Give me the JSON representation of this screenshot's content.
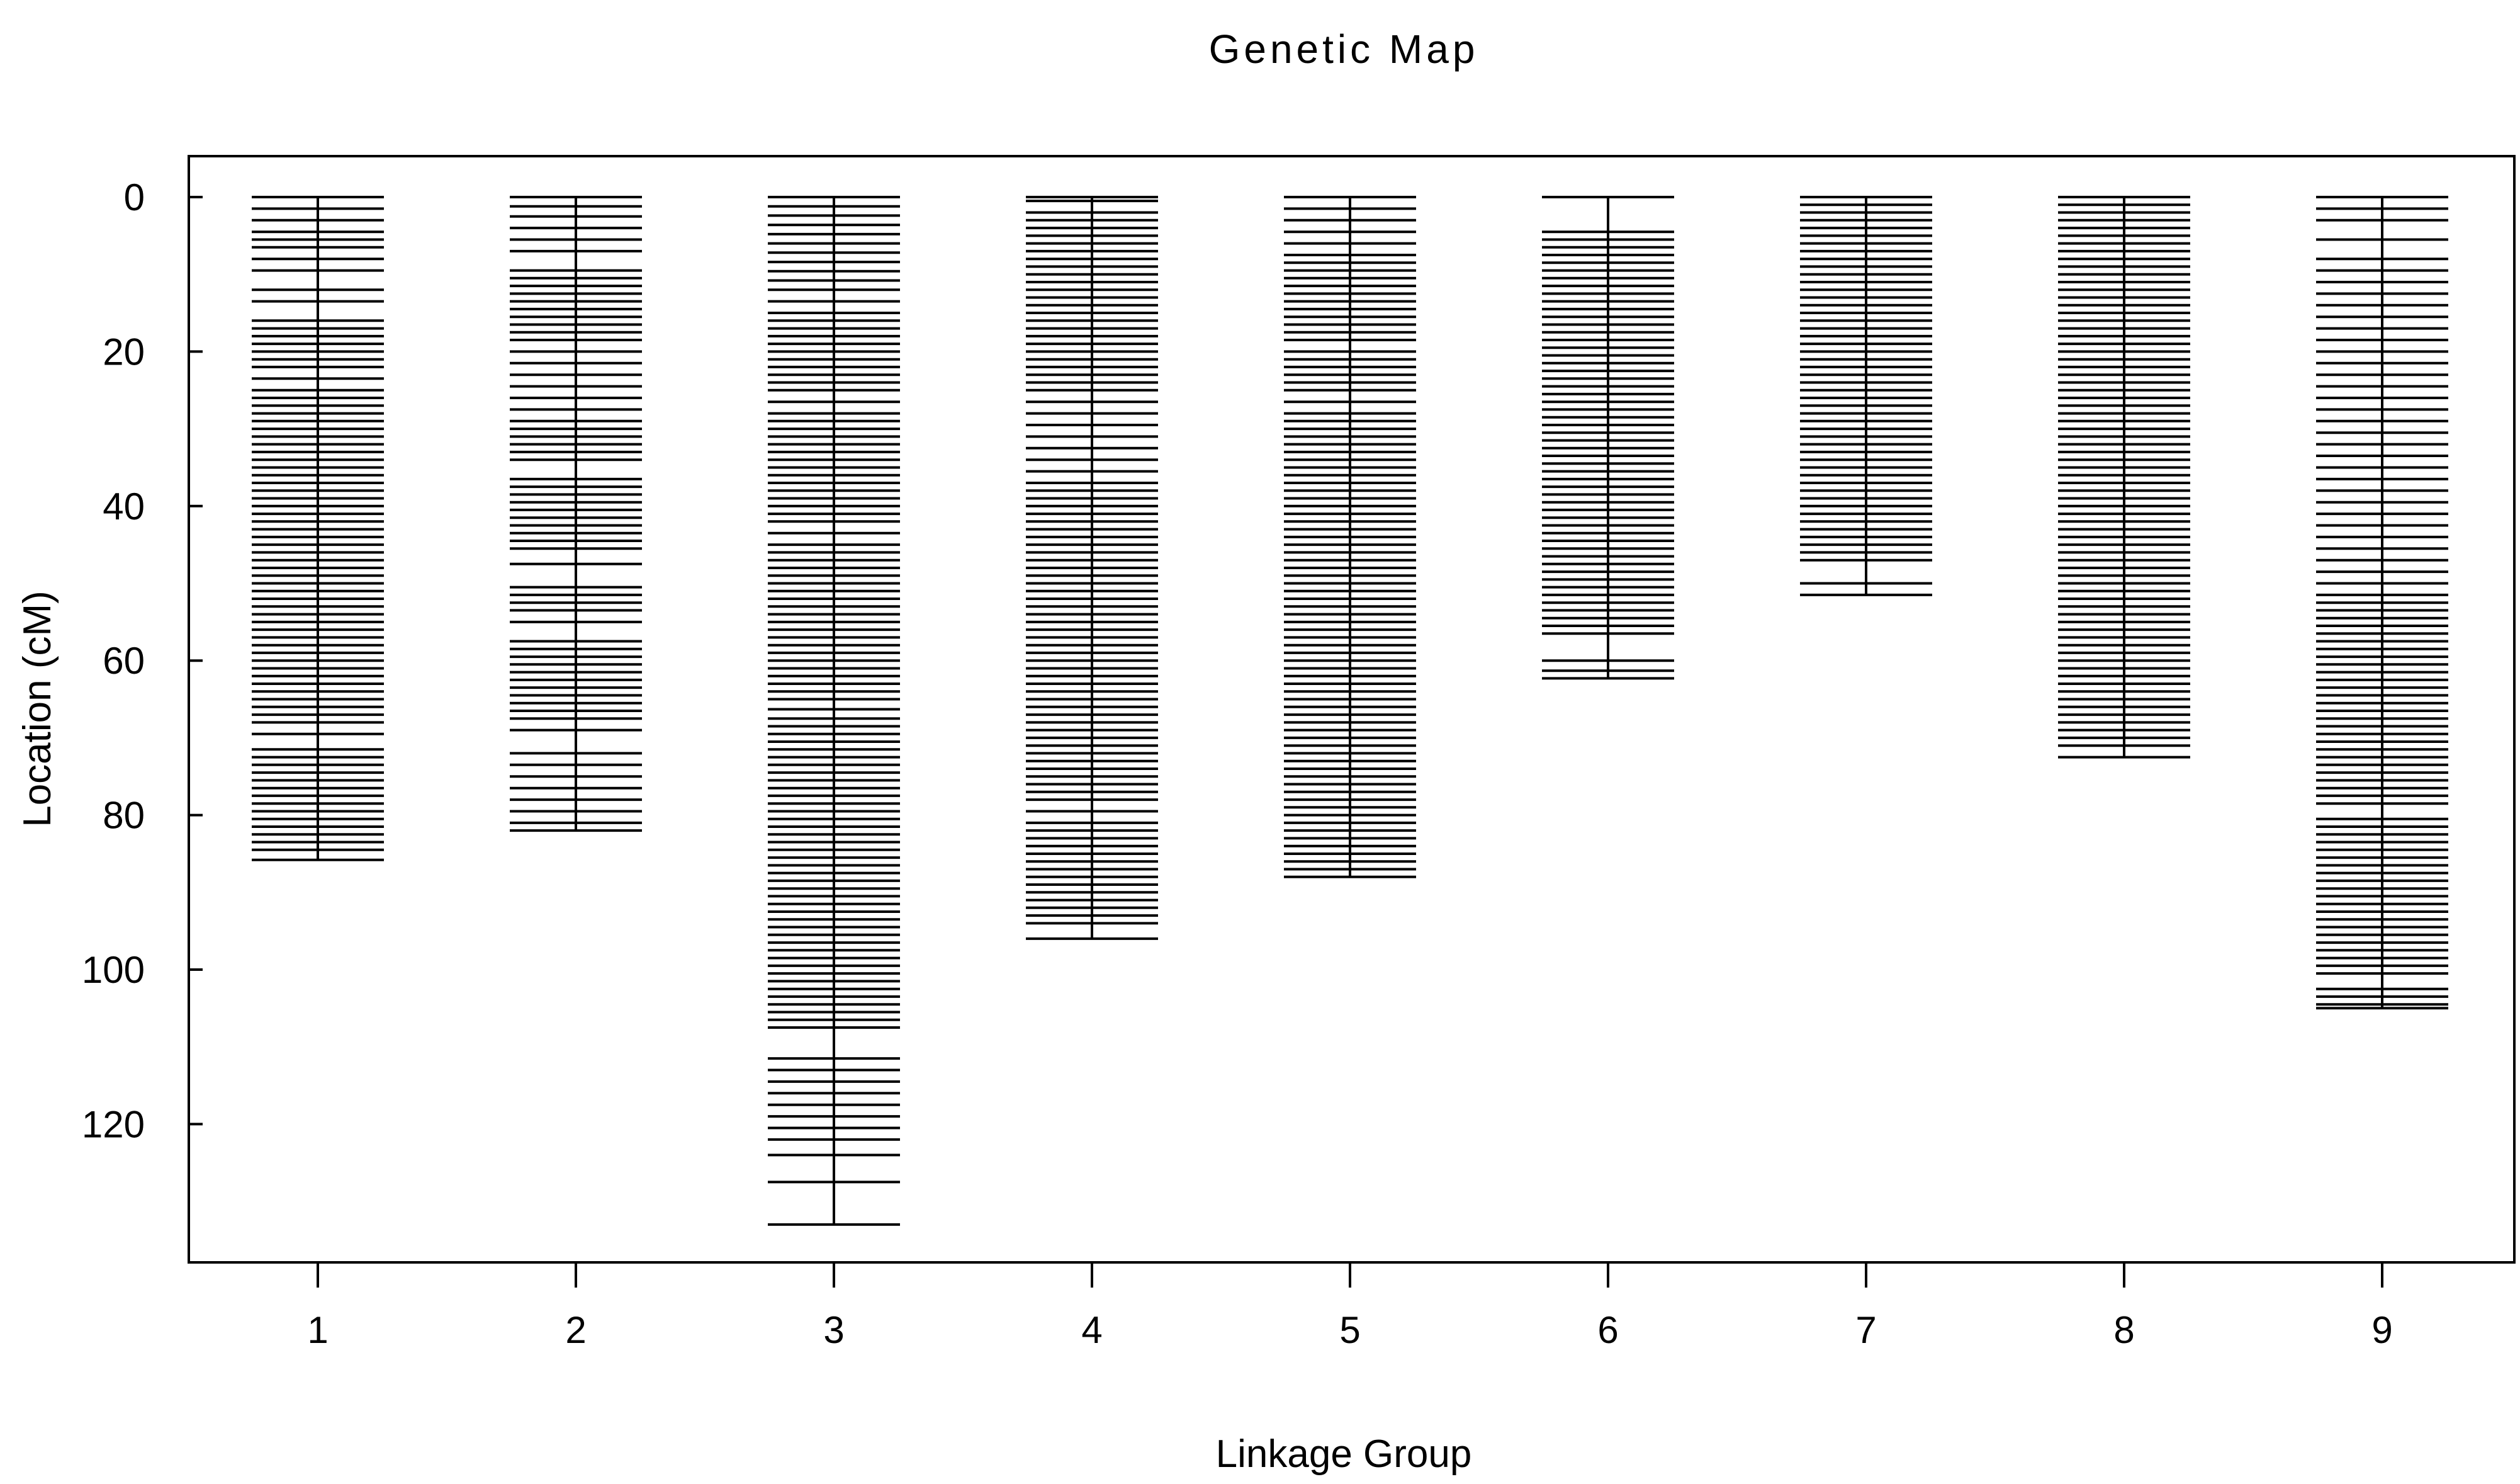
{
  "chart_data": {
    "type": "genetic-map",
    "title": "Genetic Map",
    "xlabel": "Linkage Group",
    "ylabel": "Location (cM)",
    "ylim": [
      0,
      138
    ],
    "y_reversed": true,
    "y_ticks": [
      0,
      20,
      40,
      60,
      80,
      100,
      120
    ],
    "y_tick_labels": [
      "0",
      "20",
      "40",
      "60",
      "80",
      "100",
      "120"
    ],
    "categories": [
      "1",
      "2",
      "3",
      "4",
      "5",
      "6",
      "7",
      "8",
      "9"
    ],
    "series": [
      {
        "name": "1",
        "length": 85.8,
        "markers": [
          0,
          1.5,
          3,
          4.5,
          5.5,
          6.5,
          8,
          9.5,
          12,
          13.5,
          16,
          17,
          18,
          19,
          20,
          21,
          22,
          23.5,
          25,
          26,
          27,
          28,
          29,
          30,
          31,
          32,
          33,
          34,
          35,
          36,
          37,
          38,
          39,
          40,
          41,
          42,
          43,
          44,
          45,
          46,
          47,
          48,
          49,
          50,
          51,
          52,
          53,
          54,
          55,
          56,
          57,
          58,
          59,
          60,
          61,
          62,
          63,
          64,
          65,
          66,
          67,
          68,
          69.5,
          71.5,
          72.5,
          73.5,
          74.5,
          75.5,
          76.5,
          77.5,
          78.5,
          79.5,
          80.5,
          81.5,
          82.5,
          83.5,
          84.5,
          85.8
        ]
      },
      {
        "name": "2",
        "length": 82,
        "markers": [
          0,
          1.2,
          2.5,
          4,
          5.5,
          7,
          9.5,
          10.5,
          11.5,
          12.5,
          13.5,
          14.5,
          15.5,
          16.5,
          17.5,
          18.5,
          20,
          21.5,
          23,
          24.5,
          26,
          27.5,
          29,
          30,
          31,
          32,
          33,
          34,
          36.5,
          37.5,
          38.5,
          39.5,
          40.5,
          41.5,
          42.5,
          43.5,
          44.5,
          45.5,
          47.5,
          50.5,
          51.5,
          52.5,
          53.5,
          55,
          57.5,
          58.5,
          59.5,
          60.5,
          61.5,
          62.5,
          63.5,
          64.5,
          65.5,
          66.5,
          67.5,
          69,
          72,
          73.5,
          75,
          76.5,
          78,
          79.5,
          81,
          82
        ]
      },
      {
        "name": "3",
        "length": 133,
        "markers": [
          0,
          1.2,
          2.4,
          3.6,
          4.8,
          6,
          7.2,
          8.4,
          9.6,
          10.8,
          12,
          13.5,
          15,
          16,
          17,
          18,
          19,
          20,
          21,
          22,
          23,
          24,
          25,
          26.5,
          28,
          29,
          30,
          31,
          32,
          33,
          34,
          35,
          36,
          37,
          38,
          39,
          40,
          41,
          42,
          43.5,
          45,
          46,
          47,
          48,
          49,
          50,
          51,
          52,
          53,
          54,
          55,
          56,
          57,
          58,
          59,
          60,
          61,
          62,
          63,
          64,
          65,
          66.3,
          67.5,
          68.5,
          69.5,
          70.5,
          71.5,
          72.5,
          73.5,
          74.5,
          75.5,
          76.5,
          77.5,
          78.5,
          79.5,
          80.5,
          81.5,
          82.5,
          83.5,
          84.5,
          85.5,
          86.5,
          87.5,
          88.5,
          89.5,
          90.5,
          91.5,
          92.5,
          93.5,
          94.5,
          95.5,
          96.5,
          97.5,
          98.5,
          99.5,
          100.5,
          101.5,
          102.5,
          103.5,
          104.5,
          105.5,
          106.5,
          107.5,
          111.5,
          113,
          114.5,
          116,
          117.5,
          119,
          120.5,
          122,
          124,
          127.5,
          133
        ]
      },
      {
        "name": "4",
        "length": 96,
        "markers": [
          0,
          0.5,
          2,
          3,
          4,
          5,
          6,
          7,
          8,
          9,
          10,
          11,
          12,
          13,
          14,
          15,
          16,
          17,
          18,
          19,
          20,
          21,
          22,
          23,
          24,
          25,
          26.5,
          28,
          29.5,
          31,
          32.5,
          34,
          35.5,
          37,
          38,
          39,
          40,
          41,
          42,
          43,
          44,
          45,
          46,
          47,
          48,
          49,
          50,
          51,
          52,
          53,
          54,
          55,
          56,
          57,
          58,
          59,
          60,
          61,
          62,
          63,
          64,
          65,
          66,
          67,
          68,
          69,
          70,
          71,
          72,
          73,
          74,
          75,
          76,
          77,
          78,
          79.5,
          81,
          82,
          83,
          84,
          85,
          86,
          87,
          88,
          89,
          90,
          91,
          92,
          93,
          94,
          96
        ]
      },
      {
        "name": "5",
        "length": 88,
        "markers": [
          0,
          1.5,
          3,
          4.5,
          6,
          7.5,
          8.5,
          9.5,
          10.5,
          11.5,
          12.5,
          13.5,
          14.5,
          15.5,
          16.5,
          17.5,
          18.5,
          20,
          21,
          22,
          23,
          24,
          25,
          26.5,
          28,
          29,
          30,
          31,
          32,
          33,
          34,
          35,
          36,
          37,
          38,
          39,
          40,
          41,
          42,
          43,
          44,
          45,
          46,
          47,
          48,
          49,
          50,
          51,
          52,
          53,
          54,
          55,
          56,
          57,
          58,
          59,
          60,
          61,
          62,
          63,
          64,
          65,
          66,
          67,
          68,
          69,
          70,
          71,
          72,
          73,
          74,
          75,
          76,
          77,
          78,
          79,
          80,
          81,
          82,
          83,
          84,
          85,
          86,
          87,
          88
        ]
      },
      {
        "name": "6",
        "length": 62.3,
        "markers": [
          0,
          4.5,
          5.5,
          6.5,
          7.5,
          8.5,
          9.5,
          10.5,
          11.5,
          12.5,
          13.5,
          14.5,
          15.5,
          16.5,
          17.5,
          18.5,
          19.5,
          20.5,
          21.5,
          22.5,
          23.5,
          24.5,
          25.5,
          26.5,
          27.5,
          28.5,
          29.5,
          30.5,
          31.5,
          32.5,
          33.5,
          34.5,
          35.5,
          36.5,
          37.5,
          38.5,
          39.5,
          40.5,
          41.5,
          42.5,
          43.5,
          44.5,
          45.5,
          46.5,
          47.5,
          48.5,
          49.5,
          50.5,
          51.5,
          52.5,
          53.5,
          54.5,
          55.5,
          56.5,
          60,
          61.3,
          62.3
        ]
      },
      {
        "name": "7",
        "length": 51.5,
        "markers": [
          0,
          1,
          2,
          3,
          4,
          5,
          6,
          7,
          8,
          9,
          10,
          11,
          12,
          13,
          14,
          15,
          16,
          17,
          18,
          19,
          20,
          21,
          22,
          23,
          24,
          25,
          26,
          27,
          28,
          29,
          30,
          31,
          32,
          33,
          34,
          35,
          36,
          37,
          38,
          39,
          40,
          41,
          42,
          43,
          44,
          45,
          46,
          47,
          50,
          51.5
        ]
      },
      {
        "name": "8",
        "length": 72.5,
        "markers": [
          0,
          1,
          2,
          3,
          4,
          5,
          6,
          7,
          8,
          9,
          10,
          11,
          12,
          13,
          14,
          15,
          16,
          17,
          18,
          19,
          20,
          21,
          22,
          23,
          24,
          25,
          26,
          27,
          28,
          29,
          30,
          31,
          32,
          33,
          34,
          35,
          36,
          37,
          38,
          39,
          40,
          41,
          42,
          43,
          44,
          45,
          46,
          47,
          48,
          49,
          50,
          51,
          52,
          53,
          54,
          55,
          56,
          57,
          58,
          59,
          60,
          61,
          62,
          63,
          64,
          65,
          66,
          67,
          68,
          69,
          70,
          71,
          72.5
        ]
      },
      {
        "name": "9",
        "length": 105,
        "markers": [
          0,
          1.5,
          3,
          5.5,
          8,
          9.5,
          11,
          12.5,
          14,
          15.5,
          17,
          18.5,
          20,
          21.5,
          23,
          24.5,
          26,
          27.5,
          29,
          30.5,
          32,
          33.5,
          35,
          36.5,
          38,
          39.5,
          41,
          42.5,
          44,
          45.5,
          47,
          48.5,
          50,
          51.5,
          52.5,
          53.5,
          54.5,
          55.5,
          56.5,
          57.5,
          58.5,
          59.5,
          60.5,
          61.5,
          62.5,
          63.5,
          64.5,
          65.5,
          66.5,
          67.5,
          68.5,
          69.5,
          70.5,
          71.5,
          72.5,
          73.5,
          74.5,
          75.5,
          76.5,
          77.5,
          78.5,
          80.5,
          81.5,
          82.5,
          83.5,
          84.5,
          85.5,
          86.5,
          87.5,
          88.5,
          89.5,
          90.5,
          91.5,
          92.5,
          93.5,
          94.5,
          95.5,
          96.5,
          97.5,
          98.5,
          99.5,
          100.5,
          102.5,
          103.5,
          104.5,
          105
        ]
      }
    ]
  }
}
